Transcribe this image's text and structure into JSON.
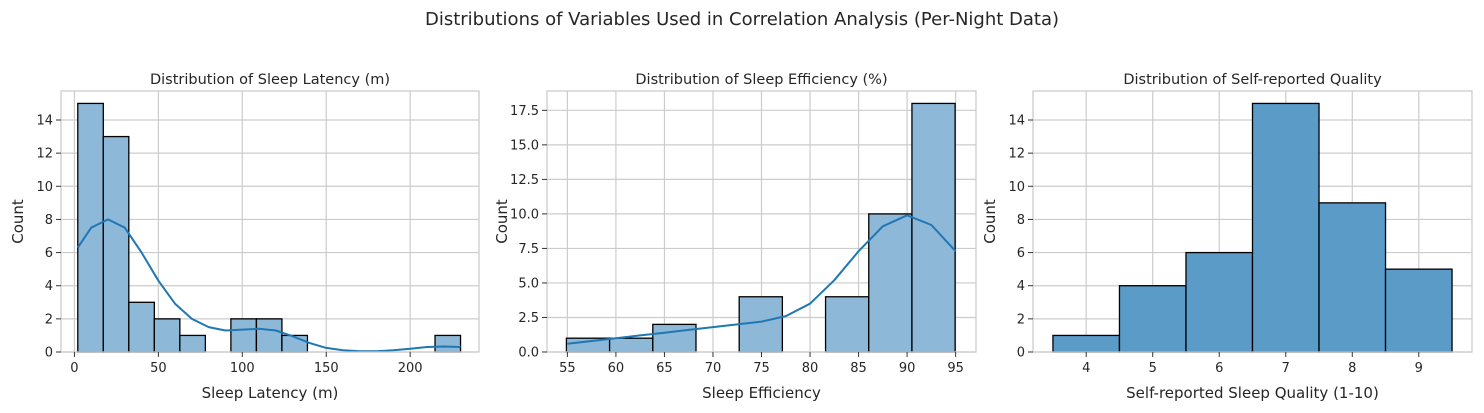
{
  "figure": {
    "suptitle": "Distributions of Variables Used in Correlation Analysis (Per-Night Data)"
  },
  "colors": {
    "bar_fill_light": "#8db8d8",
    "bar_fill_dark": "#5a9bc8",
    "bar_edge": "#000000",
    "kde_line": "#1f77b4",
    "grid": "#cccccc",
    "spine": "#cccccc"
  },
  "chart_data": [
    {
      "type": "bar",
      "subtype": "histogram",
      "title": "Distribution of Sleep Latency (m)",
      "xlabel": "Sleep Latency (m)",
      "ylabel": "Count",
      "xlim": [
        -8,
        241
      ],
      "ylim": [
        0,
        15.75
      ],
      "xticks": [
        0,
        50,
        100,
        150,
        200
      ],
      "xtick_labels": [
        "0",
        "50",
        "100",
        "150",
        "200"
      ],
      "yticks": [
        0,
        2,
        4,
        6,
        8,
        10,
        12,
        14
      ],
      "ytick_labels": [
        "0",
        "2",
        "4",
        "6",
        "8",
        "10",
        "12",
        "14"
      ],
      "bins": [
        {
          "x0": 2,
          "x1": 17.2,
          "count": 15
        },
        {
          "x0": 17.2,
          "x1": 32.4,
          "count": 13
        },
        {
          "x0": 32.4,
          "x1": 47.6,
          "count": 3
        },
        {
          "x0": 47.6,
          "x1": 62.8,
          "count": 2
        },
        {
          "x0": 62.8,
          "x1": 78,
          "count": 1
        },
        {
          "x0": 78,
          "x1": 93.2,
          "count": 0
        },
        {
          "x0": 93.2,
          "x1": 108.4,
          "count": 2
        },
        {
          "x0": 108.4,
          "x1": 123.6,
          "count": 2
        },
        {
          "x0": 123.6,
          "x1": 138.8,
          "count": 1
        },
        {
          "x0": 138.8,
          "x1": 154,
          "count": 0
        },
        {
          "x0": 154,
          "x1": 169.2,
          "count": 0
        },
        {
          "x0": 169.2,
          "x1": 184.4,
          "count": 0
        },
        {
          "x0": 184.4,
          "x1": 199.6,
          "count": 0
        },
        {
          "x0": 199.6,
          "x1": 214.8,
          "count": 0
        },
        {
          "x0": 214.8,
          "x1": 230,
          "count": 1
        }
      ],
      "kde": {
        "x": [
          2,
          10,
          20,
          30,
          40,
          50,
          60,
          70,
          80,
          90,
          100,
          110,
          120,
          130,
          140,
          150,
          160,
          170,
          180,
          190,
          200,
          210,
          220,
          230
        ],
        "y": [
          6.3,
          7.5,
          8.0,
          7.5,
          6.0,
          4.3,
          2.9,
          2.0,
          1.5,
          1.3,
          1.35,
          1.4,
          1.3,
          0.95,
          0.55,
          0.25,
          0.1,
          0.05,
          0.05,
          0.1,
          0.2,
          0.3,
          0.33,
          0.3
        ]
      },
      "bar_color_key": "bar_fill_light",
      "grid": true,
      "legend": "none"
    },
    {
      "type": "bar",
      "subtype": "histogram",
      "title": "Distribution of Sleep Efficiency (%)",
      "xlabel": "Sleep Efficiency",
      "ylabel": "Count",
      "xlim": [
        52.9,
        97.1
      ],
      "ylim": [
        0,
        18.9
      ],
      "xticks": [
        55,
        60,
        65,
        70,
        75,
        80,
        85,
        90,
        95
      ],
      "xtick_labels": [
        "55",
        "60",
        "65",
        "70",
        "75",
        "80",
        "85",
        "90",
        "95"
      ],
      "yticks": [
        0,
        2.5,
        5,
        7.5,
        10,
        12.5,
        15,
        17.5
      ],
      "ytick_labels": [
        "0.0",
        "2.5",
        "5.0",
        "7.5",
        "10.0",
        "12.5",
        "15.0",
        "17.5"
      ],
      "bins": [
        {
          "x0": 54.9,
          "x1": 59.35,
          "count": 1
        },
        {
          "x0": 59.35,
          "x1": 63.8,
          "count": 1
        },
        {
          "x0": 63.8,
          "x1": 68.25,
          "count": 2
        },
        {
          "x0": 68.25,
          "x1": 72.7,
          "count": 0
        },
        {
          "x0": 72.7,
          "x1": 77.15,
          "count": 4
        },
        {
          "x0": 77.15,
          "x1": 81.6,
          "count": 0
        },
        {
          "x0": 81.6,
          "x1": 86.05,
          "count": 4
        },
        {
          "x0": 86.05,
          "x1": 90.5,
          "count": 10
        },
        {
          "x0": 90.5,
          "x1": 94.95,
          "count": 18
        }
      ],
      "kde": {
        "x": [
          55,
          57.5,
          60,
          62.5,
          65,
          67.5,
          70,
          72.5,
          75,
          77.5,
          80,
          82.5,
          85,
          87.5,
          90,
          92.5,
          95
        ],
        "y": [
          0.6,
          0.8,
          1.0,
          1.2,
          1.4,
          1.6,
          1.8,
          2.0,
          2.2,
          2.6,
          3.5,
          5.2,
          7.3,
          9.1,
          9.9,
          9.2,
          7.3
        ]
      },
      "bar_color_key": "bar_fill_light",
      "grid": true,
      "legend": "none"
    },
    {
      "type": "bar",
      "subtype": "histogram",
      "title": "Distribution of Self-reported Quality",
      "xlabel": "Self-reported Sleep Quality (1-10)",
      "ylabel": "Count",
      "xlim": [
        3.2,
        9.8
      ],
      "ylim": [
        0,
        15.75
      ],
      "xticks": [
        4,
        5,
        6,
        7,
        8,
        9
      ],
      "xtick_labels": [
        "4",
        "5",
        "6",
        "7",
        "8",
        "9"
      ],
      "yticks": [
        0,
        2,
        4,
        6,
        8,
        10,
        12,
        14
      ],
      "ytick_labels": [
        "0",
        "2",
        "4",
        "6",
        "8",
        "10",
        "12",
        "14"
      ],
      "bins": [
        {
          "x0": 3.5,
          "x1": 4.5,
          "count": 1
        },
        {
          "x0": 4.5,
          "x1": 5.5,
          "count": 4
        },
        {
          "x0": 5.5,
          "x1": 6.5,
          "count": 6
        },
        {
          "x0": 6.5,
          "x1": 7.5,
          "count": 15
        },
        {
          "x0": 7.5,
          "x1": 8.5,
          "count": 9
        },
        {
          "x0": 8.5,
          "x1": 9.5,
          "count": 5
        }
      ],
      "kde": null,
      "bar_color_key": "bar_fill_dark",
      "grid": true,
      "legend": "none"
    }
  ]
}
